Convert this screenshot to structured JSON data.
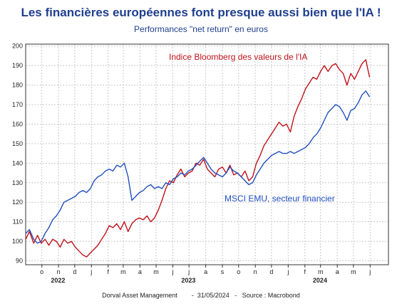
{
  "title": "Les financières européennes font presque aussi bien que l'IA !",
  "subtitle": "Performances \"net return\" en euros",
  "footer": "Dorval Asset Management        -  31/05/2024   -   Source : Macrobond",
  "chart_data": {
    "type": "line",
    "ylim": [
      88,
      201
    ],
    "yticks": [
      90,
      100,
      110,
      120,
      130,
      140,
      150,
      160,
      170,
      180,
      190,
      200
    ],
    "grid": true,
    "x_start": "2022-09-01",
    "x_end": "2024-07-05",
    "month_ticks": [
      {
        "label": "o",
        "date": "2022-10-01"
      },
      {
        "label": "n",
        "date": "2022-11-01"
      },
      {
        "label": "d",
        "date": "2022-12-01"
      },
      {
        "label": "j",
        "date": "2023-01-01"
      },
      {
        "label": "f",
        "date": "2023-02-01"
      },
      {
        "label": "m",
        "date": "2023-03-01"
      },
      {
        "label": "a",
        "date": "2023-04-01"
      },
      {
        "label": "m",
        "date": "2023-05-01"
      },
      {
        "label": "j",
        "date": "2023-06-01"
      },
      {
        "label": "j",
        "date": "2023-07-01"
      },
      {
        "label": "a",
        "date": "2023-08-01"
      },
      {
        "label": "s",
        "date": "2023-09-01"
      },
      {
        "label": "o",
        "date": "2023-10-01"
      },
      {
        "label": "n",
        "date": "2023-11-01"
      },
      {
        "label": "d",
        "date": "2023-12-01"
      },
      {
        "label": "j",
        "date": "2024-01-01"
      },
      {
        "label": "f",
        "date": "2024-02-01"
      },
      {
        "label": "m",
        "date": "2024-03-01"
      },
      {
        "label": "a",
        "date": "2024-04-01"
      },
      {
        "label": "m",
        "date": "2024-05-01"
      },
      {
        "label": "j",
        "date": "2024-06-01"
      }
    ],
    "year_labels": [
      {
        "label": "2022",
        "date": "2022-10-31"
      },
      {
        "label": "2023",
        "date": "2023-06-30"
      },
      {
        "label": "2024",
        "date": "2024-02-29"
      }
    ],
    "series": [
      {
        "name": "Indice Bloomberg des valeurs de l'IA",
        "color": "#c0121a",
        "points": [
          [
            "2022-09-01",
            101
          ],
          [
            "2022-09-08",
            105
          ],
          [
            "2022-09-16",
            99
          ],
          [
            "2022-09-23",
            103
          ],
          [
            "2022-09-30",
            99
          ],
          [
            "2022-10-07",
            101
          ],
          [
            "2022-10-14",
            98
          ],
          [
            "2022-10-21",
            101
          ],
          [
            "2022-10-28",
            100
          ],
          [
            "2022-11-04",
            97
          ],
          [
            "2022-11-11",
            101
          ],
          [
            "2022-11-18",
            99
          ],
          [
            "2022-11-25",
            100
          ],
          [
            "2022-12-02",
            97
          ],
          [
            "2022-12-09",
            95
          ],
          [
            "2022-12-16",
            93
          ],
          [
            "2022-12-23",
            92
          ],
          [
            "2022-12-30",
            94
          ],
          [
            "2023-01-06",
            96
          ],
          [
            "2023-01-13",
            98
          ],
          [
            "2023-01-20",
            101
          ],
          [
            "2023-01-27",
            104
          ],
          [
            "2023-02-03",
            108
          ],
          [
            "2023-02-10",
            107
          ],
          [
            "2023-02-17",
            109
          ],
          [
            "2023-02-24",
            106
          ],
          [
            "2023-03-03",
            110
          ],
          [
            "2023-03-10",
            105
          ],
          [
            "2023-03-17",
            109
          ],
          [
            "2023-03-24",
            111
          ],
          [
            "2023-03-31",
            112
          ],
          [
            "2023-04-07",
            111
          ],
          [
            "2023-04-14",
            113
          ],
          [
            "2023-04-21",
            110
          ],
          [
            "2023-04-28",
            112
          ],
          [
            "2023-05-05",
            116
          ],
          [
            "2023-05-12",
            121
          ],
          [
            "2023-05-19",
            127
          ],
          [
            "2023-05-26",
            131
          ],
          [
            "2023-06-02",
            130
          ],
          [
            "2023-06-09",
            134
          ],
          [
            "2023-06-16",
            137
          ],
          [
            "2023-06-23",
            133
          ],
          [
            "2023-06-30",
            135
          ],
          [
            "2023-07-07",
            136
          ],
          [
            "2023-07-14",
            140
          ],
          [
            "2023-07-21",
            139
          ],
          [
            "2023-07-28",
            142
          ],
          [
            "2023-08-04",
            137
          ],
          [
            "2023-08-11",
            135
          ],
          [
            "2023-08-18",
            133
          ],
          [
            "2023-08-25",
            137
          ],
          [
            "2023-09-01",
            138
          ],
          [
            "2023-09-08",
            135
          ],
          [
            "2023-09-15",
            139
          ],
          [
            "2023-09-22",
            134
          ],
          [
            "2023-09-29",
            135
          ],
          [
            "2023-10-06",
            133
          ],
          [
            "2023-10-13",
            136
          ],
          [
            "2023-10-20",
            131
          ],
          [
            "2023-10-27",
            133
          ],
          [
            "2023-11-03",
            140
          ],
          [
            "2023-11-10",
            144
          ],
          [
            "2023-11-17",
            149
          ],
          [
            "2023-11-24",
            152
          ],
          [
            "2023-12-01",
            155
          ],
          [
            "2023-12-08",
            158
          ],
          [
            "2023-12-15",
            161
          ],
          [
            "2023-12-22",
            159
          ],
          [
            "2023-12-29",
            160
          ],
          [
            "2024-01-05",
            156
          ],
          [
            "2024-01-12",
            164
          ],
          [
            "2024-01-19",
            169
          ],
          [
            "2024-01-26",
            173
          ],
          [
            "2024-02-02",
            178
          ],
          [
            "2024-02-09",
            181
          ],
          [
            "2024-02-16",
            184
          ],
          [
            "2024-02-23",
            183
          ],
          [
            "2024-03-01",
            187
          ],
          [
            "2024-03-08",
            190
          ],
          [
            "2024-03-15",
            187
          ],
          [
            "2024-03-22",
            190
          ],
          [
            "2024-03-29",
            191
          ],
          [
            "2024-04-05",
            188
          ],
          [
            "2024-04-12",
            186
          ],
          [
            "2024-04-19",
            180
          ],
          [
            "2024-04-26",
            186
          ],
          [
            "2024-05-03",
            183
          ],
          [
            "2024-05-10",
            187
          ],
          [
            "2024-05-17",
            191
          ],
          [
            "2024-05-24",
            193
          ],
          [
            "2024-05-31",
            184
          ]
        ]
      },
      {
        "name": "MSCI EMU, secteur financier",
        "color": "#1f4fbf",
        "points": [
          [
            "2022-09-01",
            104
          ],
          [
            "2022-09-08",
            106
          ],
          [
            "2022-09-16",
            101
          ],
          [
            "2022-09-23",
            99
          ],
          [
            "2022-09-30",
            100
          ],
          [
            "2022-10-07",
            104
          ],
          [
            "2022-10-14",
            107
          ],
          [
            "2022-10-21",
            111
          ],
          [
            "2022-10-28",
            113
          ],
          [
            "2022-11-04",
            116
          ],
          [
            "2022-11-11",
            120
          ],
          [
            "2022-11-18",
            121
          ],
          [
            "2022-11-25",
            122
          ],
          [
            "2022-12-02",
            123
          ],
          [
            "2022-12-09",
            125
          ],
          [
            "2022-12-16",
            126
          ],
          [
            "2022-12-23",
            125
          ],
          [
            "2022-12-30",
            127
          ],
          [
            "2023-01-06",
            131
          ],
          [
            "2023-01-13",
            133
          ],
          [
            "2023-01-20",
            134
          ],
          [
            "2023-01-27",
            136
          ],
          [
            "2023-02-03",
            137
          ],
          [
            "2023-02-10",
            136
          ],
          [
            "2023-02-17",
            139
          ],
          [
            "2023-02-24",
            138
          ],
          [
            "2023-03-03",
            140
          ],
          [
            "2023-03-10",
            133
          ],
          [
            "2023-03-17",
            121
          ],
          [
            "2023-03-24",
            123
          ],
          [
            "2023-03-31",
            125
          ],
          [
            "2023-04-07",
            126
          ],
          [
            "2023-04-14",
            128
          ],
          [
            "2023-04-21",
            129
          ],
          [
            "2023-04-28",
            127
          ],
          [
            "2023-05-05",
            128
          ],
          [
            "2023-05-12",
            127
          ],
          [
            "2023-05-19",
            130
          ],
          [
            "2023-05-26",
            129
          ],
          [
            "2023-06-02",
            132
          ],
          [
            "2023-06-09",
            133
          ],
          [
            "2023-06-16",
            135
          ],
          [
            "2023-06-23",
            134
          ],
          [
            "2023-06-30",
            136
          ],
          [
            "2023-07-07",
            137
          ],
          [
            "2023-07-14",
            139
          ],
          [
            "2023-07-21",
            141
          ],
          [
            "2023-07-28",
            143
          ],
          [
            "2023-08-04",
            140
          ],
          [
            "2023-08-11",
            137
          ],
          [
            "2023-08-18",
            135
          ],
          [
            "2023-08-25",
            134
          ],
          [
            "2023-09-01",
            133
          ],
          [
            "2023-09-08",
            135
          ],
          [
            "2023-09-15",
            138
          ],
          [
            "2023-09-22",
            136
          ],
          [
            "2023-09-29",
            135
          ],
          [
            "2023-10-06",
            133
          ],
          [
            "2023-10-13",
            131
          ],
          [
            "2023-10-20",
            129
          ],
          [
            "2023-10-27",
            130
          ],
          [
            "2023-11-03",
            134
          ],
          [
            "2023-11-10",
            137
          ],
          [
            "2023-11-17",
            140
          ],
          [
            "2023-11-24",
            142
          ],
          [
            "2023-12-01",
            144
          ],
          [
            "2023-12-08",
            145
          ],
          [
            "2023-12-15",
            146
          ],
          [
            "2023-12-22",
            145
          ],
          [
            "2023-12-29",
            145
          ],
          [
            "2024-01-05",
            146
          ],
          [
            "2024-01-12",
            145
          ],
          [
            "2024-01-19",
            146
          ],
          [
            "2024-01-26",
            147
          ],
          [
            "2024-02-02",
            148
          ],
          [
            "2024-02-09",
            150
          ],
          [
            "2024-02-16",
            153
          ],
          [
            "2024-02-23",
            155
          ],
          [
            "2024-03-01",
            158
          ],
          [
            "2024-03-08",
            162
          ],
          [
            "2024-03-15",
            166
          ],
          [
            "2024-03-22",
            168
          ],
          [
            "2024-03-29",
            170
          ],
          [
            "2024-04-05",
            169
          ],
          [
            "2024-04-12",
            166
          ],
          [
            "2024-04-19",
            162
          ],
          [
            "2024-04-26",
            167
          ],
          [
            "2024-05-03",
            168
          ],
          [
            "2024-05-10",
            171
          ],
          [
            "2024-05-17",
            175
          ],
          [
            "2024-05-24",
            177
          ],
          [
            "2024-05-31",
            174
          ]
        ]
      }
    ]
  }
}
